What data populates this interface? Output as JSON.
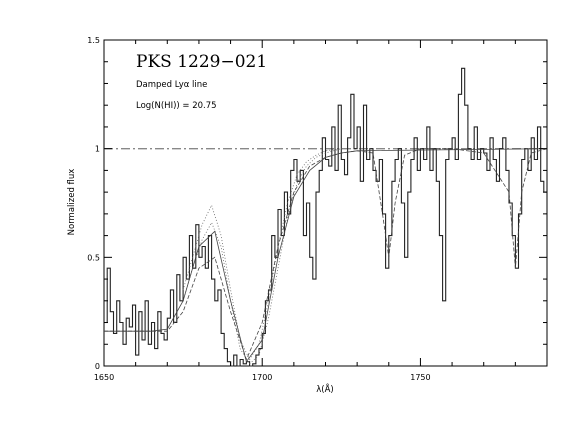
{
  "chart_data": {
    "type": "line",
    "title": "PKS  1229−021",
    "annotations": [
      "Damped Lyα  line",
      "Log(N(HI))  =  20.75"
    ],
    "xlabel": "λ(Å)",
    "ylabel": "Normalized  flux",
    "xlim": [
      1650,
      1790
    ],
    "ylim": [
      0,
      1.5
    ],
    "x_ticks": [
      1650,
      1700,
      1750
    ],
    "y_ticks": [
      0,
      0.5,
      1,
      1.5
    ],
    "y_tick_labels": [
      "0",
      "0.5",
      "1",
      "1.5"
    ],
    "reference_line": {
      "y": 1,
      "style": "dash-dot"
    },
    "series": [
      {
        "style": "histogram",
        "x": [
          1650,
          1651,
          1652,
          1653,
          1654,
          1655,
          1656,
          1657,
          1658,
          1659,
          1660,
          1661,
          1662,
          1663,
          1664,
          1665,
          1666,
          1667,
          1668,
          1669,
          1670,
          1671,
          1672,
          1673,
          1674,
          1675,
          1676,
          1677,
          1678,
          1679,
          1680,
          1681,
          1682,
          1683,
          1684,
          1685,
          1686,
          1687,
          1688,
          1689,
          1690,
          1691,
          1692,
          1693,
          1694,
          1695,
          1696,
          1697,
          1698,
          1699,
          1700,
          1701,
          1702,
          1703,
          1704,
          1705,
          1706,
          1707,
          1708,
          1709,
          1710,
          1711,
          1712,
          1713,
          1714,
          1715,
          1716,
          1717,
          1718,
          1719,
          1720,
          1721,
          1722,
          1723,
          1724,
          1725,
          1726,
          1727,
          1728,
          1729,
          1730,
          1731,
          1732,
          1733,
          1734,
          1735,
          1736,
          1737,
          1738,
          1739,
          1740,
          1741,
          1742,
          1743,
          1744,
          1745,
          1746,
          1747,
          1748,
          1749,
          1750,
          1751,
          1752,
          1753,
          1754,
          1755,
          1756,
          1757,
          1758,
          1759,
          1760,
          1761,
          1762,
          1763,
          1764,
          1765,
          1766,
          1767,
          1768,
          1769,
          1770,
          1771,
          1772,
          1773,
          1774,
          1775,
          1776,
          1777,
          1778,
          1779,
          1780,
          1781,
          1782,
          1783,
          1784,
          1785,
          1786,
          1787,
          1788,
          1789
        ],
        "y": [
          0.2,
          0.45,
          0.25,
          0.15,
          0.3,
          0.2,
          0.1,
          0.22,
          0.18,
          0.28,
          0.05,
          0.25,
          0.12,
          0.3,
          0.1,
          0.2,
          0.08,
          0.25,
          0.15,
          0.12,
          0.22,
          0.35,
          0.2,
          0.42,
          0.3,
          0.5,
          0.4,
          0.6,
          0.45,
          0.65,
          0.5,
          0.55,
          0.45,
          0.6,
          0.4,
          0.3,
          0.35,
          0.15,
          0.08,
          0.02,
          0.0,
          0.05,
          0.0,
          0.03,
          0.01,
          0.02,
          0.0,
          0.01,
          0.05,
          0.08,
          0.15,
          0.3,
          0.35,
          0.6,
          0.5,
          0.72,
          0.6,
          0.8,
          0.7,
          0.9,
          0.95,
          0.85,
          0.9,
          0.6,
          0.75,
          0.5,
          0.4,
          0.8,
          0.9,
          1.05,
          0.95,
          0.92,
          1.1,
          0.9,
          1.2,
          0.95,
          0.88,
          1.05,
          1.25,
          1.0,
          1.1,
          0.85,
          1.2,
          0.95,
          1.0,
          0.9,
          0.85,
          0.95,
          0.7,
          0.45,
          0.6,
          0.85,
          0.95,
          1.0,
          0.75,
          0.5,
          0.8,
          0.95,
          1.05,
          0.9,
          1.0,
          0.95,
          1.1,
          0.9,
          1.0,
          0.85,
          0.6,
          0.3,
          0.95,
          1.0,
          1.05,
          0.95,
          1.25,
          1.37,
          1.2,
          1.0,
          0.95,
          1.1,
          0.95,
          1.0,
          0.98,
          0.9,
          1.05,
          0.95,
          0.85,
          1.0,
          1.05,
          0.9,
          0.75,
          0.6,
          0.45,
          0.7,
          0.95,
          1.0,
          0.9,
          1.05,
          0.95,
          1.1,
          0.85,
          0.8
        ]
      },
      {
        "style": "dashed",
        "x": [
          1650,
          1655,
          1660,
          1665,
          1670,
          1675,
          1680,
          1685,
          1690,
          1695,
          1700,
          1705,
          1710,
          1715,
          1720,
          1725,
          1730,
          1735,
          1738,
          1740,
          1742,
          1745,
          1750,
          1760,
          1770,
          1778,
          1780,
          1782,
          1785,
          1790
        ],
        "y": [
          0.16,
          0.16,
          0.16,
          0.16,
          0.16,
          0.25,
          0.45,
          0.5,
          0.25,
          0.03,
          0.2,
          0.55,
          0.8,
          0.92,
          0.96,
          0.98,
          0.99,
          0.98,
          0.7,
          0.5,
          0.75,
          0.97,
          1.0,
          1.0,
          0.98,
          0.8,
          0.45,
          0.8,
          0.98,
          1.0
        ]
      },
      {
        "style": "dotted",
        "x": [
          1675,
          1678,
          1681,
          1684,
          1687,
          1690,
          1693,
          1696,
          1699,
          1702,
          1705,
          1708,
          1711,
          1714,
          1717,
          1720,
          1725
        ],
        "y": [
          0.35,
          0.5,
          0.65,
          0.74,
          0.6,
          0.35,
          0.12,
          0.03,
          0.1,
          0.3,
          0.55,
          0.75,
          0.88,
          0.94,
          0.97,
          0.99,
          1.0
        ]
      },
      {
        "style": "dotted",
        "x": [
          1675,
          1678,
          1681,
          1684,
          1687,
          1690,
          1693,
          1696,
          1699,
          1702,
          1705,
          1708,
          1711,
          1714,
          1717,
          1720,
          1725
        ],
        "y": [
          0.3,
          0.45,
          0.58,
          0.66,
          0.55,
          0.3,
          0.08,
          0.01,
          0.05,
          0.22,
          0.45,
          0.68,
          0.84,
          0.92,
          0.96,
          0.98,
          1.0
        ]
      },
      {
        "style": "solid-thin",
        "x": [
          1650,
          1655,
          1660,
          1665,
          1670,
          1675,
          1680,
          1685,
          1690,
          1695,
          1700,
          1705,
          1710,
          1715,
          1720,
          1725,
          1730,
          1790
        ],
        "y": [
          0.16,
          0.16,
          0.16,
          0.16,
          0.17,
          0.3,
          0.55,
          0.62,
          0.3,
          0.02,
          0.12,
          0.5,
          0.78,
          0.9,
          0.96,
          0.98,
          0.99,
          1.0
        ]
      }
    ]
  }
}
